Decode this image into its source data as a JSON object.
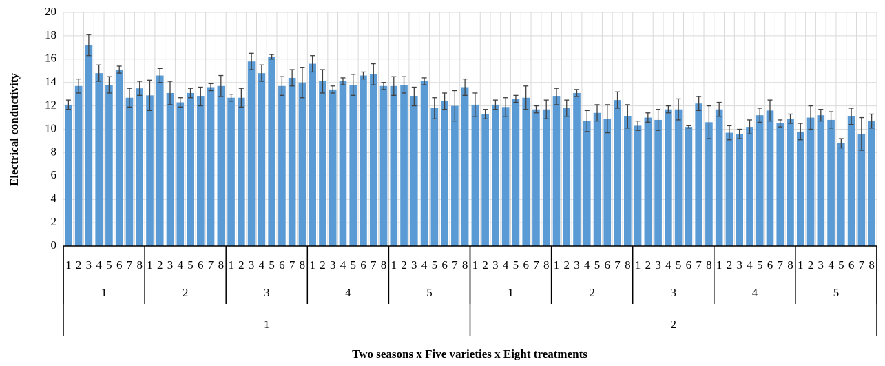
{
  "chart_data": {
    "type": "bar",
    "y_label": "Electrical conductivity",
    "x_label": "Two seasons x Five varieties x Eight treatments",
    "categories": [
      "1",
      "2",
      "3",
      "4",
      "5",
      "6",
      "7",
      "8",
      "1",
      "2",
      "3",
      "4",
      "5",
      "6",
      "7",
      "8",
      "1",
      "2",
      "3",
      "4",
      "5",
      "6",
      "7",
      "8",
      "1",
      "2",
      "3",
      "4",
      "5",
      "6",
      "7",
      "8",
      "1",
      "2",
      "3",
      "4",
      "5",
      "6",
      "7",
      "8",
      "1",
      "2",
      "3",
      "4",
      "5",
      "6",
      "7",
      "8",
      "1",
      "2",
      "3",
      "4",
      "5",
      "6",
      "7",
      "8",
      "1",
      "2",
      "3",
      "4",
      "5",
      "6",
      "7",
      "8",
      "1",
      "2",
      "3",
      "4",
      "5",
      "6",
      "7",
      "8",
      "1",
      "2",
      "3",
      "4",
      "5",
      "6",
      "7",
      "8"
    ],
    "varieties": [
      "1",
      "2",
      "3",
      "4",
      "5",
      "1",
      "2",
      "3",
      "4",
      "5"
    ],
    "seasons": [
      "1",
      "2"
    ],
    "color": "#5b9bd5",
    "values": [
      12.1,
      13.7,
      17.2,
      14.8,
      13.8,
      15.1,
      12.7,
      13.5,
      12.9,
      14.6,
      13.1,
      12.3,
      13.1,
      12.8,
      13.6,
      13.7,
      12.7,
      12.7,
      15.8,
      14.8,
      16.2,
      13.7,
      14.4,
      14.0,
      15.6,
      14.1,
      13.4,
      14.1,
      13.8,
      14.6,
      14.7,
      13.7,
      13.7,
      13.8,
      12.8,
      14.1,
      11.8,
      12.4,
      12.0,
      13.6,
      12.1,
      11.3,
      12.1,
      11.9,
      12.6,
      12.7,
      11.7,
      11.7,
      12.8,
      11.8,
      13.1,
      10.7,
      11.4,
      10.9,
      12.5,
      11.1,
      10.3,
      11.0,
      10.8,
      11.7,
      11.7,
      10.2,
      12.2,
      10.6,
      11.7,
      9.7,
      9.6,
      10.2,
      11.2,
      11.6,
      10.5,
      10.9,
      9.8,
      11.0,
      11.2,
      10.8,
      8.8,
      11.1,
      9.6,
      10.7
    ],
    "errors": [
      0.4,
      0.6,
      0.9,
      0.7,
      0.7,
      0.3,
      0.8,
      0.6,
      1.3,
      0.6,
      1.0,
      0.4,
      0.4,
      0.8,
      0.3,
      0.9,
      0.3,
      0.8,
      0.7,
      0.7,
      0.2,
      0.8,
      0.7,
      1.3,
      0.7,
      1.0,
      0.3,
      0.3,
      0.9,
      0.3,
      0.9,
      0.3,
      0.8,
      0.7,
      0.8,
      0.3,
      0.9,
      0.7,
      1.3,
      0.7,
      1.0,
      0.4,
      0.4,
      0.8,
      0.3,
      1.0,
      0.3,
      0.8,
      0.7,
      0.7,
      0.3,
      0.9,
      0.7,
      1.2,
      0.7,
      1.0,
      0.4,
      0.4,
      0.9,
      0.3,
      0.9,
      0.1,
      0.6,
      1.4,
      0.6,
      0.6,
      0.4,
      0.6,
      0.6,
      0.9,
      0.3,
      0.4,
      0.7,
      1.0,
      0.5,
      0.7,
      0.4,
      0.7,
      1.4,
      0.6
    ],
    "ylim": [
      0,
      20
    ],
    "yticks": [
      0,
      2,
      4,
      6,
      8,
      10,
      12,
      14,
      16,
      18,
      20
    ],
    "grid": true
  }
}
